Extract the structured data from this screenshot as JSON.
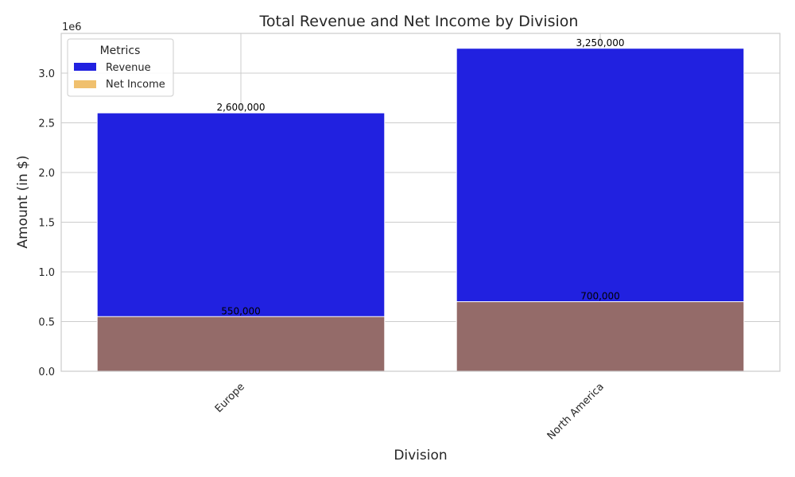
{
  "chart_data": {
    "type": "bar",
    "title": "Total Revenue and Net Income by Division",
    "xlabel": "Division",
    "ylabel": "Amount (in $)",
    "y_scale_factor_label": "1e6",
    "categories": [
      "Europe",
      "North America"
    ],
    "series": [
      {
        "name": "Revenue",
        "values": [
          2600000,
          3250000
        ],
        "labels": [
          "2,600,000",
          "3,250,000"
        ],
        "color": "#2121e0"
      },
      {
        "name": "Net Income",
        "values": [
          550000,
          700000
        ],
        "labels": [
          "550,000",
          "700,000"
        ],
        "color": "#f0c06e",
        "overlay_color": "#946b69"
      }
    ],
    "ylim": [
      0,
      3400000
    ],
    "yticks": [
      0,
      500000,
      1000000,
      1500000,
      2000000,
      2500000,
      3000000
    ],
    "ytick_labels": [
      "0.0",
      "0.5",
      "1.0",
      "1.5",
      "2.0",
      "2.5",
      "3.0"
    ],
    "legend": {
      "title": "Metrics",
      "placement": "top-left"
    },
    "grid": true
  }
}
